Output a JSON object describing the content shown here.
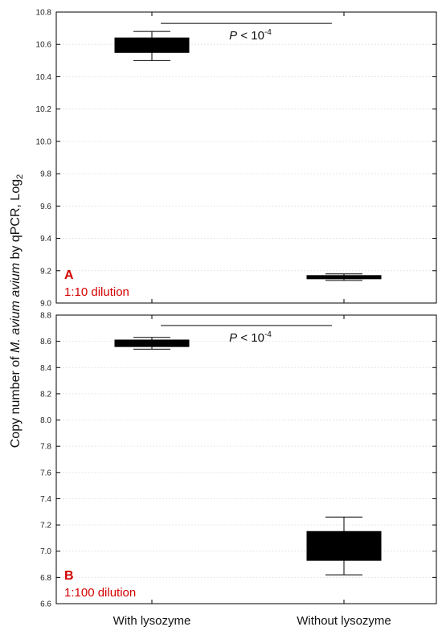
{
  "figure": {
    "ylabel_prefix": "Copy number of ",
    "ylabel_species": "M. avium avium",
    "ylabel_suffix": " by qPCR, Log",
    "ylabel_subscript": "2",
    "categories": [
      "With lysozyme",
      "Without lysozyme"
    ]
  },
  "chart_data": [
    {
      "type": "box",
      "panel_letter": "A",
      "panel_label": "1:10 dilution",
      "categories": [
        "With lysozyme",
        "Without lysozyme"
      ],
      "ylim": [
        9.0,
        10.8
      ],
      "yticks": [
        9.0,
        9.2,
        9.4,
        9.6,
        9.8,
        10.0,
        10.2,
        10.4,
        10.6,
        10.8
      ],
      "grid": true,
      "boxes": [
        {
          "category": "With lysozyme",
          "q1": 10.55,
          "q3": 10.64,
          "whisker_low": 10.5,
          "whisker_high": 10.68
        },
        {
          "category": "Without lysozyme",
          "q1": 9.15,
          "q3": 9.17,
          "whisker_low": 9.14,
          "whisker_high": 9.18
        }
      ],
      "annotation": {
        "text": "P < 10",
        "exponent": "-4",
        "bracket_from": 0.55,
        "bracket_to": 1.45,
        "y": 10.73
      }
    },
    {
      "type": "box",
      "panel_letter": "B",
      "panel_label": "1:100 dilution",
      "categories": [
        "With lysozyme",
        "Without lysozyme"
      ],
      "ylim": [
        6.6,
        8.8
      ],
      "yticks": [
        6.6,
        6.8,
        7.0,
        7.2,
        7.4,
        7.6,
        7.8,
        8.0,
        8.2,
        8.4,
        8.6,
        8.8
      ],
      "grid": true,
      "boxes": [
        {
          "category": "With lysozyme",
          "q1": 8.56,
          "q3": 8.61,
          "whisker_low": 8.54,
          "whisker_high": 8.63
        },
        {
          "category": "Without lysozyme",
          "q1": 6.93,
          "q3": 7.15,
          "whisker_low": 6.82,
          "whisker_high": 7.26
        }
      ],
      "annotation": {
        "text": "P < 10",
        "exponent": "-4",
        "bracket_from": 0.55,
        "bracket_to": 1.45,
        "y": 8.72
      }
    }
  ]
}
